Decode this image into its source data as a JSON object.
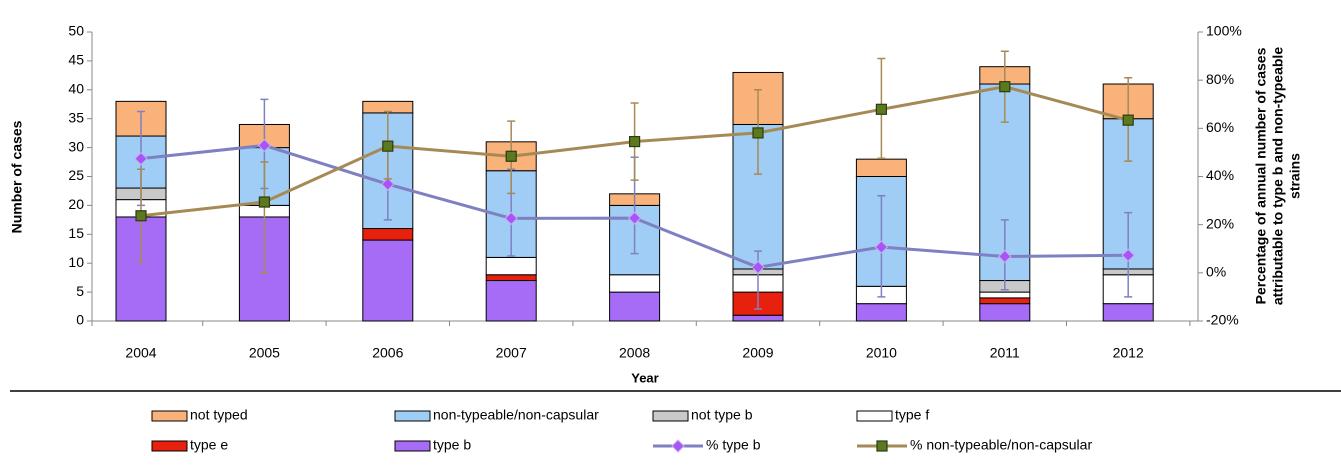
{
  "chart_data": {
    "type": "bar",
    "stacked": true,
    "xlabel": "Year",
    "ylabel": "Number of cases",
    "y2label": [
      "Percentage of annual number of cases",
      "attributable to  type b and non-typeable",
      "strains"
    ],
    "categories": [
      "2004",
      "2005",
      "2006",
      "2007",
      "2008",
      "2009",
      "2010",
      "2011",
      "2012"
    ],
    "ylim": [
      0,
      50
    ],
    "yticks": [
      0,
      5,
      10,
      15,
      20,
      25,
      30,
      35,
      40,
      45,
      50
    ],
    "y2lim": [
      -20,
      100
    ],
    "y2ticks": [
      {
        "value": -20,
        "label": "-20%"
      },
      {
        "value": 0,
        "label": "0%"
      },
      {
        "value": 20,
        "label": "20%"
      },
      {
        "value": 40,
        "label": "40%"
      },
      {
        "value": 60,
        "label": "60%"
      },
      {
        "value": 80,
        "label": "80%"
      },
      {
        "value": 100,
        "label": "100%"
      }
    ],
    "grid": false,
    "legend": "bottom",
    "series": [
      {
        "name": "not typed",
        "color": "#fab27b",
        "values": [
          6,
          4,
          2,
          5,
          2,
          9,
          3,
          3,
          6
        ]
      },
      {
        "name": "non-typeable/non-capsular",
        "color": "#9fcdf6",
        "values": [
          9,
          10,
          20,
          15,
          12,
          25,
          19,
          34,
          26
        ]
      },
      {
        "name": "not type b",
        "color": "#c9c9c9",
        "values": [
          2,
          0,
          0,
          0,
          0,
          1,
          0,
          2,
          1
        ]
      },
      {
        "name": "type f",
        "color": "#ffffff",
        "values": [
          3,
          2,
          0,
          3,
          3,
          3,
          3,
          1,
          5
        ]
      },
      {
        "name": "type  e",
        "color": "#e8200e",
        "values": [
          0,
          0,
          2,
          1,
          0,
          4,
          0,
          1,
          0
        ]
      },
      {
        "name": "type b",
        "color": "#a66cf6",
        "values": [
          18,
          18,
          14,
          7,
          5,
          1,
          3,
          3,
          3
        ]
      },
      {
        "name": "% type b",
        "type": "line",
        "axis": "y2",
        "color": "#7f80c2",
        "marker": "diamond",
        "marker_color": "#a855f7",
        "values": [
          47.4,
          52.9,
          36.8,
          22.6,
          22.7,
          2.3,
          10.7,
          6.8,
          7.3
        ],
        "ci_low": [
          28,
          35,
          22,
          7,
          8,
          -15,
          -10,
          -7,
          -10
        ],
        "ci_high": [
          67,
          72,
          53,
          43,
          48,
          9,
          32,
          22,
          25
        ]
      },
      {
        "name": "% non-typeable/non-capsular",
        "type": "line",
        "axis": "y2",
        "color": "#a68a55",
        "marker": "square",
        "marker_color": "#5b7a1f",
        "values": [
          23.7,
          29.4,
          52.6,
          48.4,
          54.5,
          58.1,
          67.9,
          77.3,
          63.4
        ],
        "ci_low": [
          4.5,
          0,
          39,
          33,
          38.5,
          41,
          47.6,
          62.6,
          46.4
        ],
        "ci_high": [
          43,
          46,
          67,
          63,
          70.5,
          76,
          89,
          92,
          81
        ]
      }
    ]
  }
}
